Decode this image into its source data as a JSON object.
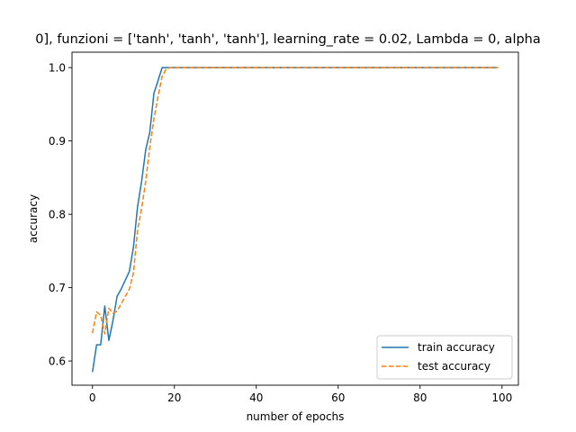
{
  "chart_data": {
    "type": "line",
    "title": "0], funzioni = ['tanh', 'tanh', 'tanh'], learning_rate = 0.02, Lambda = 0, alpha",
    "xlabel": "number of epochs",
    "ylabel": "accuracy",
    "xlim": [
      -5,
      104
    ],
    "ylim": [
      0.567,
      1.021
    ],
    "xticks": [
      0,
      20,
      40,
      60,
      80,
      100
    ],
    "xtick_labels": [
      "0",
      "20",
      "40",
      "60",
      "80",
      "100"
    ],
    "yticks": [
      0.6,
      0.7,
      0.8,
      0.9,
      1.0
    ],
    "ytick_labels": [
      "0.6",
      "0.7",
      "0.8",
      "0.9",
      "1.0"
    ],
    "grid": false,
    "legend_position": "lower-right",
    "series": [
      {
        "name": "train accuracy",
        "color": "#1f77b4",
        "linestyle": "solid",
        "points": [
          [
            0,
            0.585
          ],
          [
            1,
            0.622
          ],
          [
            2,
            0.622
          ],
          [
            3,
            0.675
          ],
          [
            4,
            0.628
          ],
          [
            5,
            0.655
          ],
          [
            6,
            0.688
          ],
          [
            7,
            0.698
          ],
          [
            8,
            0.71
          ],
          [
            9,
            0.722
          ],
          [
            10,
            0.755
          ],
          [
            11,
            0.81
          ],
          [
            12,
            0.845
          ],
          [
            13,
            0.888
          ],
          [
            14,
            0.912
          ],
          [
            15,
            0.965
          ],
          [
            16,
            0.982
          ],
          [
            17,
            1.0
          ],
          [
            99,
            1.0
          ]
        ]
      },
      {
        "name": "test accuracy",
        "color": "#ff7f0e",
        "linestyle": "dashed",
        "points": [
          [
            0,
            0.638
          ],
          [
            1,
            0.667
          ],
          [
            2,
            0.662
          ],
          [
            3,
            0.637
          ],
          [
            4,
            0.672
          ],
          [
            5,
            0.665
          ],
          [
            6,
            0.668
          ],
          [
            7,
            0.678
          ],
          [
            8,
            0.688
          ],
          [
            9,
            0.698
          ],
          [
            10,
            0.72
          ],
          [
            11,
            0.778
          ],
          [
            12,
            0.808
          ],
          [
            13,
            0.845
          ],
          [
            14,
            0.892
          ],
          [
            15,
            0.93
          ],
          [
            16,
            0.96
          ],
          [
            17,
            0.988
          ],
          [
            18,
            0.998
          ],
          [
            19,
            1.0
          ],
          [
            99,
            1.0
          ]
        ]
      }
    ]
  }
}
